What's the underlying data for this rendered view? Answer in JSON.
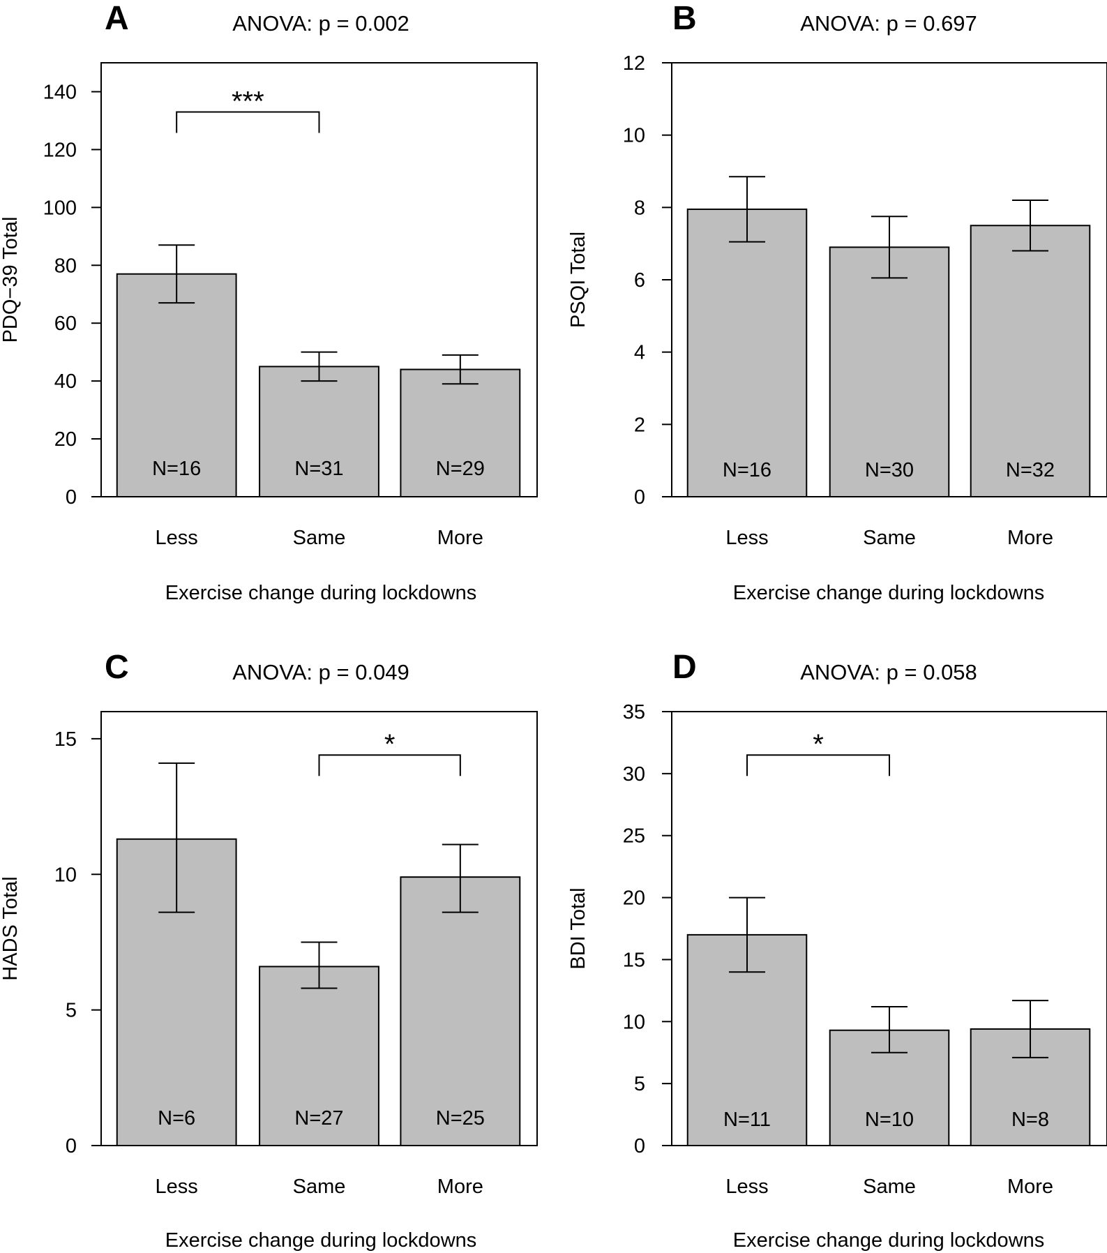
{
  "chart_data": [
    {
      "type": "bar",
      "panel": "A",
      "title": "ANOVA: p = 0.002",
      "xlabel": "Exercise change during lockdowns",
      "ylabel": "PDQ−39 Total",
      "categories": [
        "Less",
        "Same",
        "More"
      ],
      "values": [
        77,
        45,
        44
      ],
      "error_low": [
        67,
        40,
        39
      ],
      "error_high": [
        87,
        50,
        49
      ],
      "n_labels": [
        "N=16",
        "N=31",
        "N=29"
      ],
      "ylim": [
        0,
        150
      ],
      "yticks": [
        0,
        20,
        40,
        60,
        80,
        100,
        120,
        140
      ],
      "significance": [
        {
          "from": 0,
          "to": 1,
          "y": 133,
          "label": "***"
        }
      ]
    },
    {
      "type": "bar",
      "panel": "B",
      "title": "ANOVA: p = 0.697",
      "xlabel": "Exercise change during lockdowns",
      "ylabel": "PSQI Total",
      "categories": [
        "Less",
        "Same",
        "More"
      ],
      "values": [
        7.95,
        6.9,
        7.5
      ],
      "error_low": [
        7.05,
        6.05,
        6.8
      ],
      "error_high": [
        8.85,
        7.75,
        8.2
      ],
      "n_labels": [
        "N=16",
        "N=30",
        "N=32"
      ],
      "ylim": [
        0,
        12
      ],
      "yticks": [
        0,
        2,
        4,
        6,
        8,
        10,
        12
      ],
      "significance": []
    },
    {
      "type": "bar",
      "panel": "C",
      "title": "ANOVA: p = 0.049",
      "xlabel": "Exercise change during lockdowns",
      "ylabel": "HADS Total",
      "categories": [
        "Less",
        "Same",
        "More"
      ],
      "values": [
        11.3,
        6.6,
        9.9
      ],
      "error_low": [
        8.6,
        5.8,
        8.6
      ],
      "error_high": [
        14.1,
        7.5,
        11.1
      ],
      "n_labels": [
        "N=6",
        "N=27",
        "N=25"
      ],
      "ylim": [
        0,
        16
      ],
      "yticks": [
        0,
        5,
        10,
        15
      ],
      "significance": [
        {
          "from": 1,
          "to": 2,
          "y": 14.4,
          "label": "*"
        }
      ]
    },
    {
      "type": "bar",
      "panel": "D",
      "title": "ANOVA: p = 0.058",
      "xlabel": "Exercise change during lockdowns",
      "ylabel": "BDI Total",
      "categories": [
        "Less",
        "Same",
        "More"
      ],
      "values": [
        17,
        9.3,
        9.4
      ],
      "error_low": [
        14,
        7.5,
        7.1
      ],
      "error_high": [
        20,
        11.2,
        11.7
      ],
      "n_labels": [
        "N=11",
        "N=10",
        "N=8"
      ],
      "ylim": [
        0,
        35
      ],
      "yticks": [
        0,
        5,
        10,
        15,
        20,
        25,
        30,
        35
      ],
      "significance": [
        {
          "from": 0,
          "to": 1,
          "y": 31.5,
          "label": "*"
        }
      ]
    }
  ]
}
